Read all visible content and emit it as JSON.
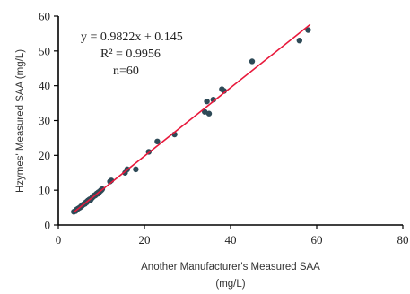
{
  "chart_data": {
    "type": "scatter",
    "xlabel_line1": "Another Manufacturer's Measured SAA",
    "xlabel_line2": "(mg/L)",
    "ylabel": "Hzymes' Measured SAA (mg/L)",
    "xlim": [
      0,
      80
    ],
    "ylim": [
      0,
      60
    ],
    "x_ticks": [
      0,
      20,
      40,
      60,
      80
    ],
    "y_ticks": [
      0,
      10,
      20,
      30,
      40,
      50,
      60
    ],
    "grid": false,
    "annotations": {
      "equation": "y = 0.9822x + 0.145",
      "r_squared": "R² = 0.9956",
      "n": "n=60"
    },
    "fit_line": {
      "slope": 0.9822,
      "intercept": 0.145,
      "x_range": [
        3.5,
        58.5
      ],
      "color": "#e8193c"
    },
    "marker_color": "#2e4a57",
    "points": {
      "x": [
        3.6,
        4.0,
        4.3,
        4.7,
        5.0,
        5.3,
        5.7,
        6.0,
        6.3,
        6.6,
        6.9,
        7.2,
        7.5,
        7.8,
        8.0,
        8.3,
        8.6,
        8.9,
        9.2,
        9.5,
        9.8,
        10.0,
        4.5,
        5.5,
        6.5,
        7.0,
        7.7,
        8.2,
        8.8,
        9.6,
        5.2,
        6.2,
        7.3,
        8.5,
        9.9,
        4.1,
        5.8,
        7.9,
        9.0,
        10.2,
        12.0,
        12.3,
        15.5,
        16.0,
        18.0,
        21.0,
        23.0,
        27.0,
        34.0,
        34.5,
        35.0,
        36.0,
        38.0,
        38.5,
        45.0,
        56.0,
        58.0,
        6.8,
        8.1,
        9.3
      ],
      "y": [
        3.8,
        4.0,
        4.5,
        4.8,
        5.0,
        5.4,
        5.8,
        6.0,
        6.4,
        6.5,
        7.0,
        7.3,
        7.2,
        7.8,
        8.0,
        8.3,
        8.5,
        9.0,
        9.0,
        9.4,
        9.8,
        10.0,
        4.6,
        5.5,
        6.6,
        7.1,
        7.6,
        8.4,
        8.8,
        9.6,
        5.2,
        6.1,
        7.4,
        8.6,
        10.0,
        4.2,
        5.9,
        8.0,
        9.1,
        10.3,
        12.5,
        12.8,
        15.0,
        16.0,
        16.0,
        21.0,
        24.0,
        26.0,
        32.5,
        35.5,
        32.0,
        36.0,
        39.0,
        38.5,
        47.0,
        53.0,
        56.0,
        6.9,
        8.2,
        9.4
      ]
    }
  }
}
